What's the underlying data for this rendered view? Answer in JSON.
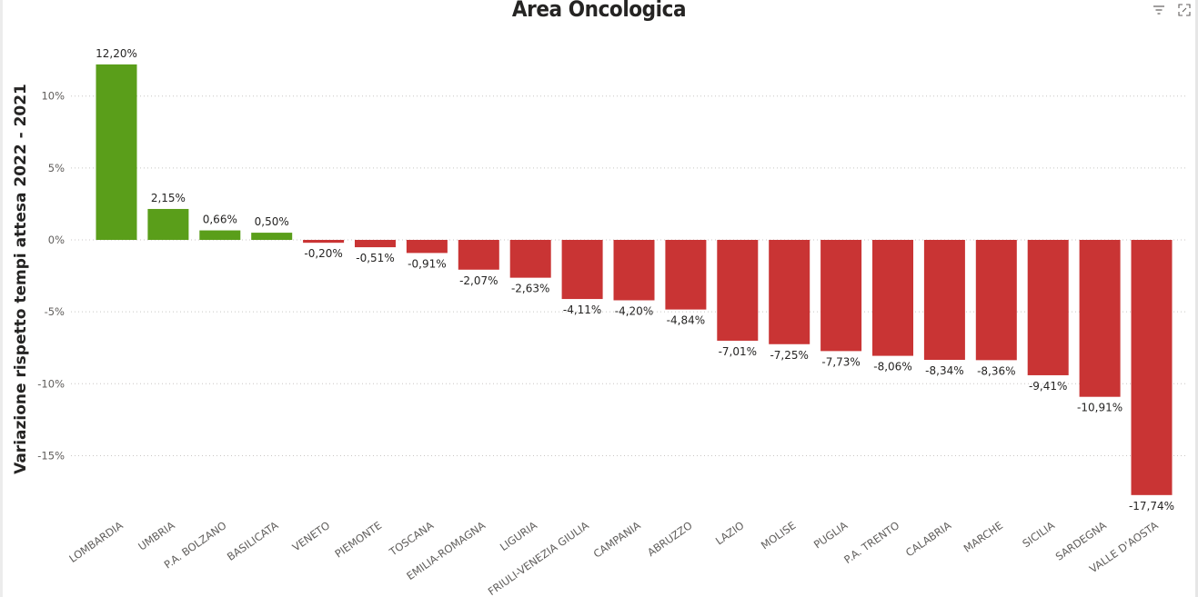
{
  "title": "Area Oncologica",
  "header_icons": [
    "filter-icon",
    "focus-mode-icon"
  ],
  "colors": {
    "positive": "#5a9e1a",
    "negative": "#c93434",
    "gridline": "#c8c6c4",
    "text": "#252423",
    "axis_text": "#605e5c"
  },
  "chart_data": {
    "type": "bar",
    "title": "Area Oncologica",
    "xlabel": "",
    "ylabel": "Variazione rispetto tempi attesa 2022 - 2021",
    "ylim": [
      -18,
      12.8
    ],
    "yticks": [
      10,
      5,
      0,
      -5,
      -10,
      -15
    ],
    "ytick_labels": [
      "10%",
      "5%",
      "0%",
      "-5%",
      "-10%",
      "-15%"
    ],
    "grid": true,
    "legend": "none",
    "categories": [
      "LOMBARDIA",
      "UMBRIA",
      "P.A. BOLZANO",
      "BASILICATA",
      "VENETO",
      "PIEMONTE",
      "TOSCANA",
      "EMILIA-ROMAGNA",
      "LIGURIA",
      "FRIULI-VENEZIA GIULIA",
      "CAMPANIA",
      "ABRUZZO",
      "LAZIO",
      "MOLISE",
      "PUGLIA",
      "P.A. TRENTO",
      "CALABRIA",
      "MARCHE",
      "SICILIA",
      "SARDEGNA",
      "VALLE D'AOSTA"
    ],
    "values": [
      12.2,
      2.15,
      0.66,
      0.5,
      -0.2,
      -0.51,
      -0.91,
      -2.07,
      -2.63,
      -4.11,
      -4.2,
      -4.84,
      -7.01,
      -7.25,
      -7.73,
      -8.06,
      -8.34,
      -8.36,
      -9.41,
      -10.91,
      -17.74
    ],
    "data_labels": [
      "12,20%",
      "2,15%",
      "0,66%",
      "0,50%",
      "-0,20%",
      "-0,51%",
      "-0,91%",
      "-2,07%",
      "-2,63%",
      "-4,11%",
      "-4,20%",
      "-4,84%",
      "-7,01%",
      "-7,25%",
      "-7,73%",
      "-8,06%",
      "-8,34%",
      "-8,36%",
      "-9,41%",
      "-10,91%",
      "-17,74%"
    ]
  }
}
